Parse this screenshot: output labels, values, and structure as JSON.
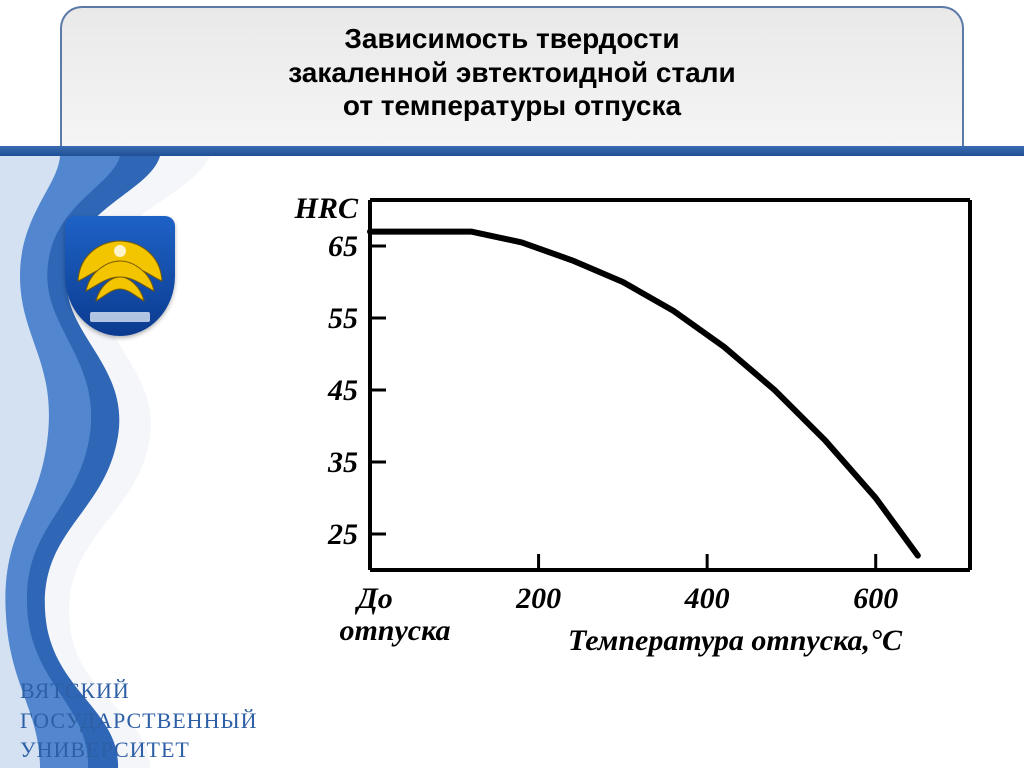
{
  "title": {
    "line1": "Зависимость твердости",
    "line2": "закаленной эвтектоидной стали",
    "line3": "от температуры отпуска",
    "fontsize": 28,
    "color": "#000000",
    "background": "#ececec",
    "border_color": "#5c7aa8"
  },
  "blue_strip_color_top": "#3b6bb0",
  "blue_strip_color_bottom": "#1f4f95",
  "ribbon": {
    "outer_color": "#ffffff",
    "wave_color": "#2f66b5",
    "wave_highlight": "#6fa0e2"
  },
  "crest": {
    "bg_top": "#1e62c6",
    "bg_bottom": "#0b3b8f",
    "wing_color": "#f3c400",
    "wing_stroke": "#7a5c00"
  },
  "university": {
    "line1": "ВЯТСКИЙ",
    "line2": "ГОСУДАРСТВЕННЫЙ",
    "line3": "УНИВЕРСИТЕТ",
    "color": "#2d5fa6",
    "fontsize": 22
  },
  "chart": {
    "type": "line",
    "ylabel": "HRC",
    "xlabel": "Температура отпуска,°С",
    "x_origin_label_line1": "До",
    "x_origin_label_line2": "отпуска",
    "line_color": "#000000",
    "axis_color": "#000000",
    "background_color": "#ffffff",
    "line_width": 6,
    "axis_width": 4,
    "tick_width": 3,
    "label_fontsize": 30,
    "tick_fontsize": 30,
    "yticks": [
      25,
      35,
      45,
      55,
      65
    ],
    "xticks": [
      200,
      400,
      600
    ],
    "xlim": [
      0,
      700
    ],
    "ylim": [
      20,
      70
    ],
    "series": [
      {
        "x": 0,
        "y": 67
      },
      {
        "x": 60,
        "y": 67
      },
      {
        "x": 120,
        "y": 67
      },
      {
        "x": 180,
        "y": 65.5
      },
      {
        "x": 240,
        "y": 63
      },
      {
        "x": 300,
        "y": 60
      },
      {
        "x": 360,
        "y": 56
      },
      {
        "x": 420,
        "y": 51
      },
      {
        "x": 480,
        "y": 45
      },
      {
        "x": 540,
        "y": 38
      },
      {
        "x": 600,
        "y": 30
      },
      {
        "x": 650,
        "y": 22
      }
    ]
  }
}
